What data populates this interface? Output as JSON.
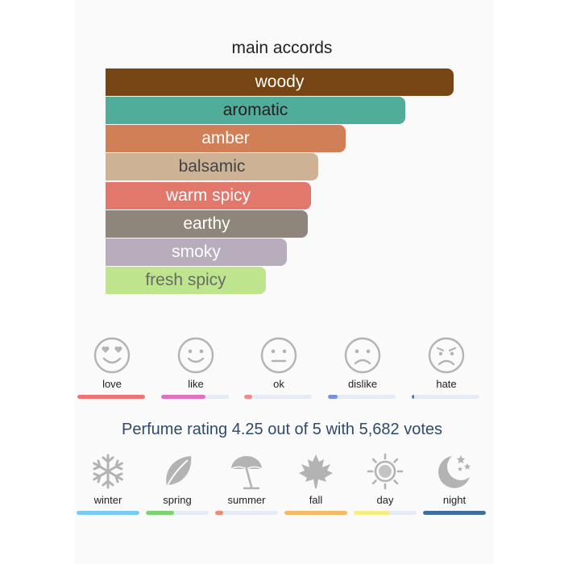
{
  "accords": {
    "title": "main accords",
    "items": [
      {
        "label": "woody",
        "strength": 1.0,
        "bg": "#774514",
        "fg": "#ffffff"
      },
      {
        "label": "aromatic",
        "strength": 0.86,
        "bg": "#50ad9a",
        "fg": "#222222"
      },
      {
        "label": "amber",
        "strength": 0.69,
        "bg": "#d17f56",
        "fg": "#ffffff"
      },
      {
        "label": "balsamic",
        "strength": 0.61,
        "bg": "#cdb295",
        "fg": "#444444"
      },
      {
        "label": "warm spicy",
        "strength": 0.59,
        "bg": "#e2776b",
        "fg": "#ffffff"
      },
      {
        "label": "earthy",
        "strength": 0.58,
        "bg": "#8e857b",
        "fg": "#ffffff"
      },
      {
        "label": "smoky",
        "strength": 0.52,
        "bg": "#b7adbd",
        "fg": "#ffffff"
      },
      {
        "label": "fresh spicy",
        "strength": 0.46,
        "bg": "#bee48d",
        "fg": "#6a6a6a"
      }
    ]
  },
  "votes": [
    {
      "label": "love",
      "icon": "love-face-icon",
      "level": 1.0,
      "color": "#ef7373"
    },
    {
      "label": "like",
      "icon": "smile-face-icon",
      "level": 0.66,
      "color": "#e070c0"
    },
    {
      "label": "ok",
      "icon": "neutral-face-icon",
      "level": 0.12,
      "color": "#f28b8b"
    },
    {
      "label": "dislike",
      "icon": "sad-face-icon",
      "level": 0.14,
      "color": "#7b8fe0"
    },
    {
      "label": "hate",
      "icon": "angry-face-icon",
      "level": 0.04,
      "color": "#4a78b8"
    }
  ],
  "rating": {
    "text": "Perfume rating 4.25 out of 5 with 5,682 votes"
  },
  "seasons": [
    {
      "label": "winter",
      "icon": "snowflake-icon",
      "level": 1.0,
      "color": "#79cbef"
    },
    {
      "label": "spring",
      "icon": "leaf-icon",
      "level": 0.45,
      "color": "#7ad46f"
    },
    {
      "label": "summer",
      "icon": "umbrella-icon",
      "level": 0.13,
      "color": "#f08a6e"
    },
    {
      "label": "fall",
      "icon": "maple-leaf-icon",
      "level": 1.0,
      "color": "#f6bb62"
    },
    {
      "label": "day",
      "icon": "sun-icon",
      "level": 0.58,
      "color": "#f6ee7c"
    },
    {
      "label": "night",
      "icon": "moon-stars-icon",
      "level": 1.0,
      "color": "#3d6e9e"
    }
  ]
}
